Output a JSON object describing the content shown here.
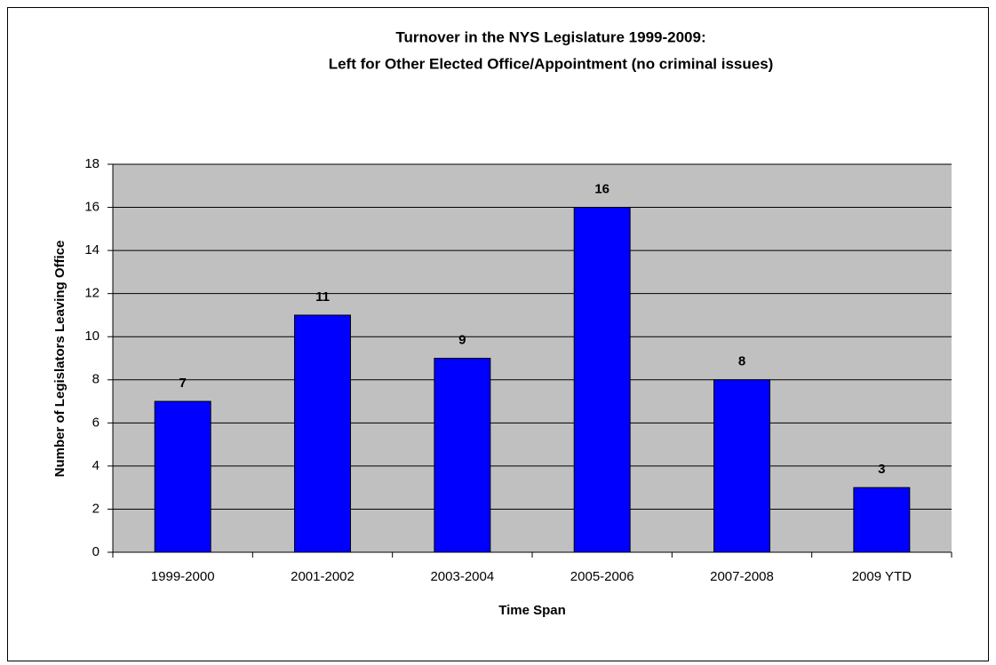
{
  "chart_data": {
    "type": "bar",
    "title": [
      "Turnover in the NYS Legislature 1999-2009:",
      "Left for Other Elected Office/Appointment (no criminal issues)"
    ],
    "xlabel": "Time Span",
    "ylabel": "Number of Legislators Leaving Office",
    "categories": [
      "1999-2000",
      "2001-2002",
      "2003-2004",
      "2005-2006",
      "2007-2008",
      "2009 YTD"
    ],
    "values": [
      7,
      11,
      9,
      16,
      8,
      3
    ],
    "color": "#0000ff",
    "ylim": [
      0,
      18
    ],
    "yticks": [
      0,
      2,
      4,
      6,
      8,
      10,
      12,
      14,
      16,
      18
    ],
    "grid": true
  }
}
